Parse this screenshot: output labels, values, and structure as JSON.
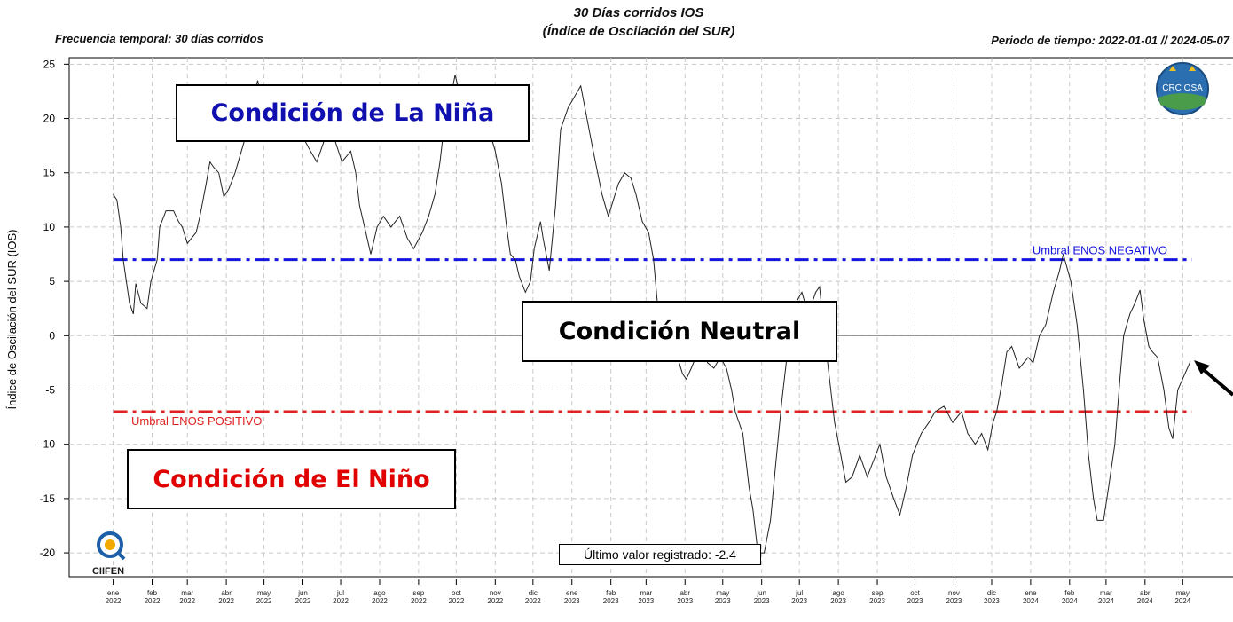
{
  "chart_data": {
    "type": "line",
    "title": "30 Días corridos IOS",
    "subtitle": "(Índice de Oscilación del SUR)",
    "header_left": "Frecuencia temporal: 30 días corridos",
    "header_right": "Periodo de tiempo: 2022-01-01 // 2024-05-07",
    "y_label": "Índice de Oscilación del SUR (IOS)",
    "annotations": [
      "Condición de La Niña",
      "Condición Neutral",
      "Condición de El Niño"
    ],
    "last_value_note": "Último valor registrado: -2.4",
    "logos": [
      "CRC OSA",
      "CIIFEN"
    ],
    "color": "#222222",
    "grid": true,
    "xlim": [
      "2021-11-27",
      "2024-06-10"
    ],
    "ylim": [
      -22.2,
      25.6
    ],
    "yticks": [
      -20,
      -15,
      -10,
      -5,
      0,
      5,
      10,
      15,
      20,
      25
    ],
    "reference_lines": [
      {
        "value": 0,
        "color": "#888888"
      },
      {
        "label": "Umbral ENOS NEGATIVO",
        "value": 7,
        "color": "#1515e0"
      },
      {
        "label": "Umbral ENOS POSITIVO",
        "value": -7,
        "color": "#e02020"
      }
    ],
    "xticks": [
      {
        "value": "2022-01-01",
        "label": "ene 2022"
      },
      {
        "value": "2022-02-01",
        "label": "feb 2022"
      },
      {
        "value": "2022-03-01",
        "label": "mar 2022"
      },
      {
        "value": "2022-04-01",
        "label": "abr 2022"
      },
      {
        "value": "2022-05-01",
        "label": "may 2022"
      },
      {
        "value": "2022-06-01",
        "label": "jun 2022"
      },
      {
        "value": "2022-07-01",
        "label": "jul 2022"
      },
      {
        "value": "2022-08-01",
        "label": "ago 2022"
      },
      {
        "value": "2022-09-01",
        "label": "sep 2022"
      },
      {
        "value": "2022-10-01",
        "label": "oct 2022"
      },
      {
        "value": "2022-11-01",
        "label": "nov 2022"
      },
      {
        "value": "2022-12-01",
        "label": "dic 2022"
      },
      {
        "value": "2023-01-01",
        "label": "ene 2023"
      },
      {
        "value": "2023-02-01",
        "label": "feb 2023"
      },
      {
        "value": "2023-03-01",
        "label": "mar 2023"
      },
      {
        "value": "2023-04-01",
        "label": "abr 2023"
      },
      {
        "value": "2023-05-01",
        "label": "may 2023"
      },
      {
        "value": "2023-06-01",
        "label": "jun 2023"
      },
      {
        "value": "2023-07-01",
        "label": "jul 2023"
      },
      {
        "value": "2023-08-01",
        "label": "ago 2023"
      },
      {
        "value": "2023-09-01",
        "label": "sep 2023"
      },
      {
        "value": "2023-10-01",
        "label": "oct 2023"
      },
      {
        "value": "2023-11-01",
        "label": "nov 2023"
      },
      {
        "value": "2023-12-01",
        "label": "dic 2023"
      },
      {
        "value": "2024-01-01",
        "label": "ene 2024"
      },
      {
        "value": "2024-02-01",
        "label": "feb 2024"
      },
      {
        "value": "2024-03-01",
        "label": "mar 2024"
      },
      {
        "value": "2024-04-01",
        "label": "abr 2024"
      },
      {
        "value": "2024-05-01",
        "label": "may 2024"
      }
    ],
    "x": [
      "2022-01-01",
      "2022-01-04",
      "2022-01-07",
      "2022-01-09",
      "2022-01-14",
      "2022-01-17",
      "2022-01-19",
      "2022-01-23",
      "2022-01-28",
      "2022-01-31",
      "2022-02-05",
      "2022-02-07",
      "2022-02-12",
      "2022-02-18",
      "2022-02-22",
      "2022-02-25",
      "2022-03-01",
      "2022-03-08",
      "2022-03-11",
      "2022-03-16",
      "2022-03-19",
      "2022-03-22",
      "2022-03-26",
      "2022-03-30",
      "2022-04-03",
      "2022-04-08",
      "2022-04-13",
      "2022-04-18",
      "2022-04-23",
      "2022-04-26",
      "2022-04-30",
      "2022-05-07",
      "2022-05-10",
      "2022-05-17",
      "2022-05-24",
      "2022-05-31",
      "2022-06-07",
      "2022-06-12",
      "2022-06-18",
      "2022-06-25",
      "2022-07-02",
      "2022-07-09",
      "2022-07-13",
      "2022-07-16",
      "2022-07-20",
      "2022-07-25",
      "2022-07-30",
      "2022-08-04",
      "2022-08-10",
      "2022-08-17",
      "2022-08-23",
      "2022-08-28",
      "2022-09-04",
      "2022-09-09",
      "2022-09-14",
      "2022-09-18",
      "2022-09-21",
      "2022-09-25",
      "2022-09-30",
      "2022-10-09",
      "2022-10-20",
      "2022-10-27",
      "2022-11-01",
      "2022-11-06",
      "2022-11-10",
      "2022-11-13",
      "2022-11-17",
      "2022-11-20",
      "2022-11-25",
      "2022-11-29",
      "2022-12-02",
      "2022-12-07",
      "2022-12-09",
      "2022-12-14",
      "2022-12-19",
      "2022-12-23",
      "2022-12-29",
      "2023-01-03",
      "2023-01-08",
      "2023-01-13",
      "2023-01-18",
      "2023-01-25",
      "2023-01-30",
      "2023-02-03",
      "2023-02-07",
      "2023-02-12",
      "2023-02-17",
      "2023-02-21",
      "2023-02-26",
      "2023-03-03",
      "2023-03-07",
      "2023-03-10",
      "2023-03-14",
      "2023-03-19",
      "2023-03-26",
      "2023-03-30",
      "2023-04-02",
      "2023-04-06",
      "2023-04-13",
      "2023-04-19",
      "2023-04-24",
      "2023-04-29",
      "2023-05-04",
      "2023-05-08",
      "2023-05-11",
      "2023-05-17",
      "2023-05-22",
      "2023-05-25",
      "2023-05-29",
      "2023-06-03",
      "2023-06-08",
      "2023-06-12",
      "2023-06-17",
      "2023-06-23",
      "2023-06-28",
      "2023-07-03",
      "2023-07-08",
      "2023-07-14",
      "2023-07-17",
      "2023-07-21",
      "2023-07-26",
      "2023-07-29",
      "2023-08-03",
      "2023-08-07",
      "2023-08-12",
      "2023-08-18",
      "2023-08-24",
      "2023-08-29",
      "2023-09-03",
      "2023-09-08",
      "2023-09-14",
      "2023-09-19",
      "2023-09-24",
      "2023-09-29",
      "2023-10-06",
      "2023-10-12",
      "2023-10-17",
      "2023-10-24",
      "2023-10-31",
      "2023-11-07",
      "2023-11-12",
      "2023-11-18",
      "2023-11-23",
      "2023-11-28",
      "2023-12-02",
      "2023-12-05",
      "2023-12-09",
      "2023-12-13",
      "2023-12-17",
      "2023-12-23",
      "2023-12-30",
      "2024-01-03",
      "2024-01-08",
      "2024-01-13",
      "2024-01-19",
      "2024-01-24",
      "2024-01-27",
      "2024-02-02",
      "2024-02-07",
      "2024-02-12",
      "2024-02-16",
      "2024-02-20",
      "2024-02-23",
      "2024-02-28",
      "2024-03-03",
      "2024-03-08",
      "2024-03-12",
      "2024-03-15",
      "2024-03-20",
      "2024-03-24",
      "2024-03-28",
      "2024-03-31",
      "2024-04-04",
      "2024-04-07",
      "2024-04-11",
      "2024-04-16",
      "2024-04-20",
      "2024-04-23",
      "2024-04-27",
      "2024-05-07"
    ],
    "values": [
      13,
      12.5,
      10,
      7,
      3,
      2,
      4.8,
      3,
      2.5,
      5,
      7,
      10,
      11.5,
      11.5,
      10.5,
      10,
      8.5,
      9.5,
      11,
      14,
      16,
      15.5,
      15,
      12.8,
      13.5,
      15,
      17,
      19,
      22,
      23.5,
      21,
      19,
      18,
      18.5,
      19,
      18.5,
      17,
      16,
      18,
      18.5,
      16,
      17,
      15,
      12,
      10,
      7.5,
      10,
      11,
      10,
      11,
      9,
      8,
      9.5,
      11,
      13,
      16,
      19,
      21,
      24,
      20,
      19,
      19,
      17,
      14,
      10,
      7.5,
      7,
      5.5,
      4,
      5,
      8,
      10.5,
      9,
      6,
      12,
      19,
      21,
      22,
      23,
      20,
      17,
      13,
      11,
      12.5,
      14,
      15,
      14.5,
      13,
      10.5,
      9.5,
      7,
      3,
      -1,
      -2,
      -2,
      -3.5,
      -4,
      -3,
      -1,
      -2.5,
      -3,
      -2,
      -3,
      -5,
      -7,
      -9,
      -14,
      -16,
      -20,
      -20,
      -17,
      -12,
      -6,
      0,
      3,
      4,
      2,
      4,
      4.5,
      0,
      -5,
      -8,
      -11,
      -13.5,
      -13,
      -11,
      -13,
      -11.5,
      -10,
      -13,
      -15,
      -16.5,
      -14,
      -11,
      -9,
      -8,
      -7,
      -6.5,
      -8,
      -7,
      -9,
      -10,
      -9,
      -10.5,
      -8,
      -7,
      -4.5,
      -1.5,
      -1,
      -3,
      -2,
      -2.5,
      0,
      1,
      4,
      6,
      7.5,
      5,
      1,
      -5,
      -11,
      -15,
      -17,
      -17,
      -14,
      -10,
      -4,
      0,
      2,
      3,
      4.2,
      1.5,
      -1,
      -1.5,
      -2,
      -5,
      -8.5,
      -9.5,
      -5,
      -2.4
    ]
  }
}
